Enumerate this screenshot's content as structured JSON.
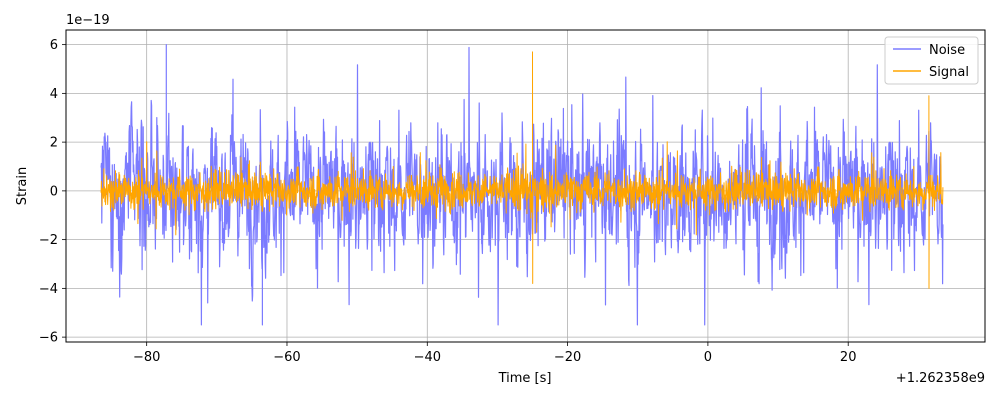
{
  "chart_data": {
    "type": "line",
    "title": "",
    "xlabel": "Time [s]",
    "ylabel": "Strain",
    "x_offset_text": "+1.262358e9",
    "y_scale_text": "1e−19",
    "xlim": [
      -91.5,
      39.5
    ],
    "ylim": [
      -6.2,
      6.6
    ],
    "x_ticks": [
      -80,
      -60,
      -40,
      -20,
      0,
      20
    ],
    "x_tick_labels": [
      "−80",
      "−60",
      "−40",
      "−20",
      "0",
      "20"
    ],
    "y_ticks": [
      -6,
      -4,
      -2,
      0,
      2,
      4,
      6
    ],
    "y_tick_labels": [
      "−6",
      "−4",
      "−2",
      "0",
      "2",
      "4",
      "6"
    ],
    "grid": true,
    "legend_position": "top-right",
    "series": [
      {
        "name": "Noise",
        "color": "#7b7bff",
        "x_range": [
          -86.5,
          33.5
        ],
        "typical_abs": 1.5,
        "max": 6.0,
        "min": -5.5
      },
      {
        "name": "Signal",
        "color": "#ffa500",
        "x_range": [
          -86.5,
          33.5
        ],
        "typical_abs": 0.7,
        "spikes": [
          {
            "x": -25.0,
            "max": 5.7,
            "min": -3.8
          },
          {
            "x": 31.5,
            "max": 3.9,
            "min": -4.0
          }
        ]
      }
    ]
  }
}
